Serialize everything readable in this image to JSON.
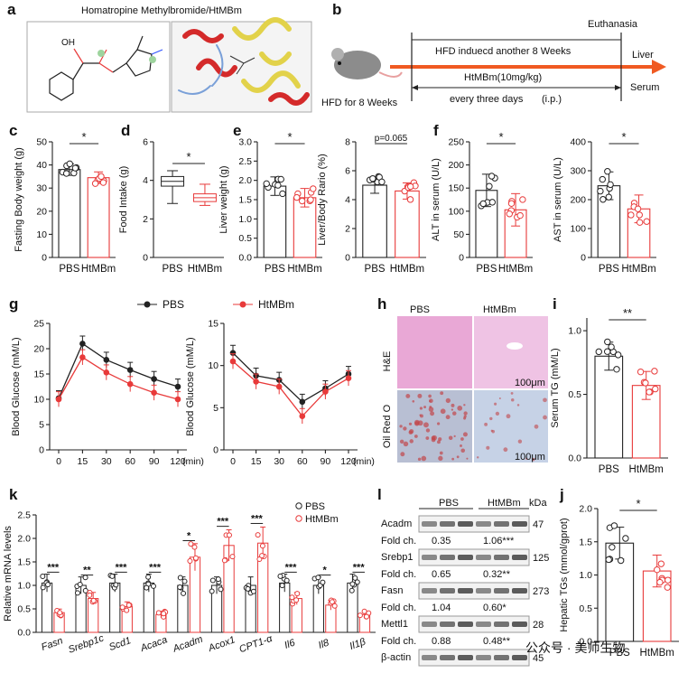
{
  "colors": {
    "pbs": "#222222",
    "htmbm": "#e83a3a",
    "arrow": "#f05a22",
    "he_stain": "#e9a8d6",
    "oro_stain": "#b9c7dc"
  },
  "panel_labels": [
    "a",
    "b",
    "c",
    "d",
    "e",
    "f",
    "g",
    "h",
    "i",
    "j",
    "k",
    "l"
  ],
  "panel_a": {
    "title": "Homatropine Methylbromide/HtMBm"
  },
  "panel_b": {
    "top": "Euthanasia",
    "mid": "HFD induecd another 8 Weeks",
    "treat": "HtMBm(10mg/kg)",
    "freq": "every three days",
    "route": "(i.p.)",
    "start": "HFD for 8 Weeks",
    "out1": "Liver",
    "out2": "Serum"
  },
  "groups": {
    "a": "PBS",
    "b": "HtMBm"
  },
  "chart_data": [
    {
      "id": "c",
      "type": "bar",
      "ylabel": "Fasting Body weight (g)",
      "categories": [
        "PBS",
        "HtMBm"
      ],
      "values": [
        38,
        34.5
      ],
      "yticks": [
        0,
        10,
        20,
        30,
        40,
        50
      ],
      "ylim": [
        0,
        50
      ],
      "sig": "*"
    },
    {
      "id": "d",
      "type": "box",
      "ylabel": "Food Intake (g)",
      "categories": [
        "PBS",
        "HtMBm"
      ],
      "yticks": [
        0,
        2,
        4,
        6
      ],
      "ylim": [
        0,
        6
      ],
      "sig": "*",
      "boxes": [
        {
          "min": 2.8,
          "q1": 3.7,
          "median": 3.95,
          "q3": 4.2,
          "max": 4.5
        },
        {
          "min": 2.7,
          "q1": 2.9,
          "median": 3.1,
          "q3": 3.3,
          "max": 3.8
        }
      ]
    },
    {
      "id": "e1",
      "type": "bar",
      "ylabel": "Liver weight (g)",
      "categories": [
        "PBS",
        "HtMBm"
      ],
      "values": [
        1.85,
        1.55
      ],
      "yticks": [
        0.0,
        0.5,
        1.0,
        1.5,
        2.0,
        2.5,
        3.0
      ],
      "ylim": [
        0,
        3
      ],
      "sig": "*"
    },
    {
      "id": "e2",
      "type": "bar",
      "ylabel": "Liver/Body Rario (%)",
      "categories": [
        "PBS",
        "HtMBm"
      ],
      "values": [
        5.0,
        4.6
      ],
      "yticks": [
        0,
        2,
        4,
        6,
        8
      ],
      "ylim": [
        0,
        8
      ],
      "sig": "p=0.065"
    },
    {
      "id": "f1",
      "type": "bar",
      "ylabel": "ALT in serum (U/L)",
      "categories": [
        "PBS",
        "HtMBm"
      ],
      "values": [
        145,
        103
      ],
      "yticks": [
        0,
        50,
        100,
        150,
        200,
        250
      ],
      "ylim": [
        0,
        250
      ],
      "sig": "*"
    },
    {
      "id": "f2",
      "type": "bar",
      "ylabel": "AST in serum (U/L)",
      "categories": [
        "PBS",
        "HtMBm"
      ],
      "values": [
        248,
        168
      ],
      "yticks": [
        0,
        100,
        200,
        300,
        400
      ],
      "ylim": [
        0,
        400
      ],
      "sig": "*"
    },
    {
      "id": "g1",
      "type": "line",
      "ylabel": "Blood Glucose (mM/L)",
      "x": [
        "0",
        "15",
        "30",
        "60",
        "90",
        "120"
      ],
      "xunit": "(min)",
      "yticks": [
        0,
        5,
        10,
        15,
        20,
        25
      ],
      "ylim": [
        0,
        25
      ],
      "series": [
        {
          "name": "PBS",
          "values": [
            10.2,
            21.0,
            17.8,
            15.8,
            14.0,
            12.5
          ]
        },
        {
          "name": "HtMBm",
          "values": [
            10.0,
            18.3,
            15.3,
            13.0,
            11.3,
            10.0
          ]
        }
      ]
    },
    {
      "id": "g2",
      "type": "line",
      "ylabel": "Blood Glucose (mM/L)",
      "x": [
        "0",
        "15",
        "30",
        "60",
        "90",
        "120"
      ],
      "xunit": "(min)",
      "yticks": [
        0,
        5,
        10,
        15
      ],
      "ylim": [
        0,
        15
      ],
      "series": [
        {
          "name": "PBS",
          "values": [
            11.5,
            8.8,
            8.3,
            5.7,
            7.3,
            9.0
          ]
        },
        {
          "name": "HtMBm",
          "values": [
            10.5,
            8.1,
            7.5,
            4.0,
            6.9,
            8.5
          ]
        }
      ]
    },
    {
      "id": "i",
      "type": "bar",
      "ylabel": "Serum TG (mM/L)",
      "categories": [
        "PBS",
        "HtMBm"
      ],
      "values": [
        0.8,
        0.57
      ],
      "yticks": [
        0.0,
        0.5,
        1.0
      ],
      "ylim": [
        0,
        1.1
      ],
      "sig": "**"
    },
    {
      "id": "j",
      "type": "bar",
      "ylabel": "Hepatic TGs (mmol/gprot)",
      "categories": [
        "PBS",
        "HtMBm"
      ],
      "values": [
        1.48,
        1.06
      ],
      "yticks": [
        0.0,
        0.5,
        1.0,
        1.5,
        2.0
      ],
      "ylim": [
        0,
        2.0
      ],
      "sig": "*"
    },
    {
      "id": "k",
      "type": "bar",
      "ylabel": "Relative mRNA levels",
      "yticks": [
        0.0,
        0.5,
        1.0,
        1.5,
        2.0,
        2.5
      ],
      "ylim": [
        0,
        2.5
      ],
      "categories": [
        "Fasn",
        "Srebp1c",
        "Scd1",
        "Acaca",
        "Acadm",
        "Acox1",
        "CPT1-α",
        "Il6",
        "Il8",
        "Il1β"
      ],
      "series": [
        {
          "name": "PBS",
          "values": [
            1.05,
            1.0,
            1.05,
            1.05,
            1.0,
            1.0,
            1.0,
            1.05,
            1.0,
            1.05
          ]
        },
        {
          "name": "HtMBm",
          "values": [
            0.42,
            0.72,
            0.55,
            0.38,
            1.6,
            1.85,
            1.9,
            0.72,
            0.58,
            0.38
          ]
        }
      ],
      "sig": [
        "***",
        "**",
        "***",
        "***",
        "*",
        "***",
        "***",
        "***",
        "*",
        "***"
      ]
    }
  ],
  "panel_h": {
    "col1": "PBS",
    "col2": "HtMBm",
    "row1": "H&E",
    "row2": "Oil Red O",
    "scale": "100μm"
  },
  "panel_l": {
    "col1": "PBS",
    "col2": "HtMBm",
    "unit": "kDa",
    "rows": [
      {
        "protein": "Acadm",
        "kda": "47",
        "fold": "Fold ch.",
        "v1": "0.35",
        "v2": "1.06***"
      },
      {
        "protein": "Srebp1",
        "kda": "125",
        "fold": "Fold ch.",
        "v1": "0.65",
        "v2": "0.32**"
      },
      {
        "protein": "Fasn",
        "kda": "273",
        "fold": "Fold ch.",
        "v1": "1.04",
        "v2": "0.60*"
      },
      {
        "protein": "Mettl1",
        "kda": "28",
        "fold": "Fold ch.",
        "v1": "0.88",
        "v2": "0.48**"
      },
      {
        "protein": "β-actin",
        "kda": "45"
      }
    ]
  },
  "watermark": "公众号 · 美师生物"
}
